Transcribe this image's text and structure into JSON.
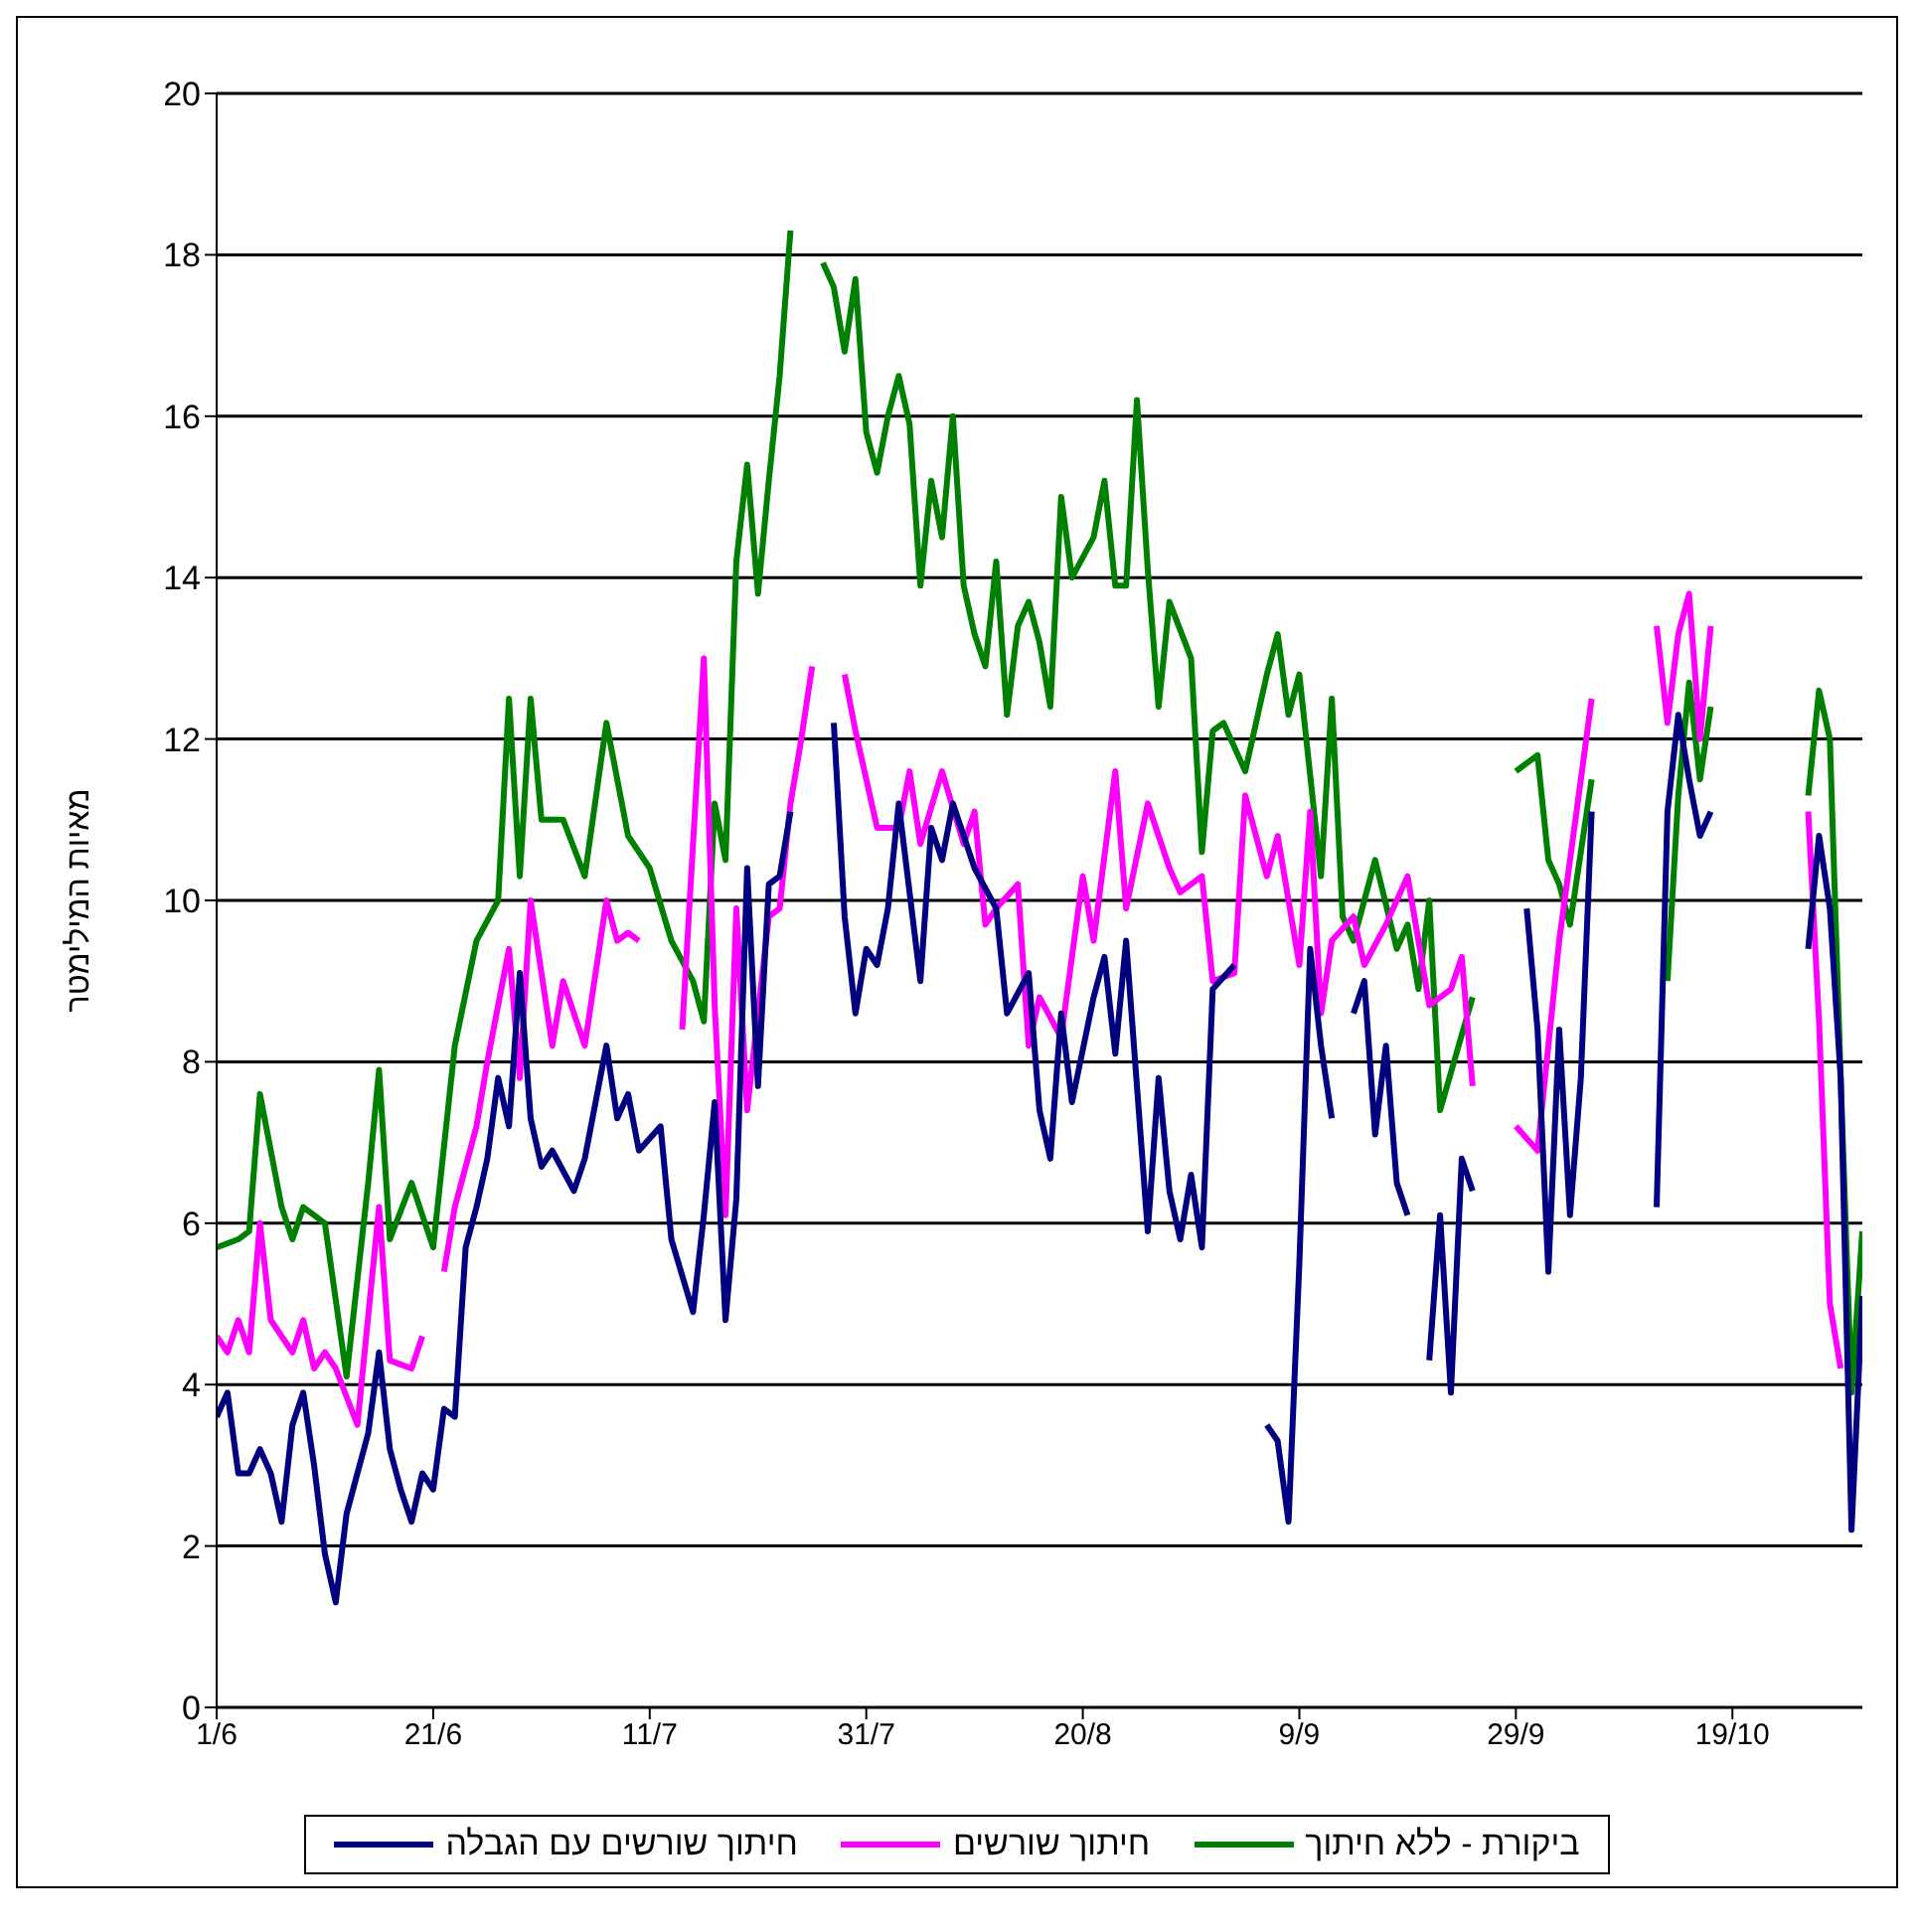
{
  "chart_data": {
    "type": "line",
    "ylabel": "מאיות המילימטר",
    "xlim": [
      "--06-01",
      "--10-31"
    ],
    "xticks": [
      {
        "value": "--06-01",
        "label": "1/6"
      },
      {
        "value": "--06-21",
        "label": "21/6"
      },
      {
        "value": "--07-11",
        "label": "11/7"
      },
      {
        "value": "--07-31",
        "label": "31/7"
      },
      {
        "value": "--08-20",
        "label": "20/8"
      },
      {
        "value": "--09-09",
        "label": "9/9"
      },
      {
        "value": "--09-29",
        "label": "29/9"
      },
      {
        "value": "--10-19",
        "label": "19/10"
      }
    ],
    "ylim": [
      0,
      20
    ],
    "yticks": [
      0,
      2,
      4,
      6,
      8,
      10,
      12,
      14,
      16,
      18,
      20
    ],
    "grid": "y",
    "legend": "bottom",
    "line_style": "solid",
    "series": [
      {
        "name": "ביקורת - ללא חיתוך",
        "color": "#008000",
        "x": [
          "--06-01",
          "--06-03",
          "--06-04",
          "--06-05",
          "--06-07",
          "--06-08",
          "--06-09",
          "--06-11",
          "--06-13",
          "--06-15",
          "--06-16",
          "--06-17",
          "--06-19",
          "--06-21",
          "--06-23",
          "--06-25",
          "--06-27",
          "--06-28",
          "--06-29",
          "--06-30",
          "--07-01",
          "--07-03",
          "--07-05",
          "--07-07",
          "--07-09",
          "--07-11",
          "--07-13",
          "--07-15",
          "--07-16",
          "--07-17",
          "--07-18",
          "--07-19",
          "--07-20",
          "--07-21",
          "--07-22",
          "--07-23",
          "--07-24",
          "--07-25",
          "--07-27",
          "--07-28",
          "--07-29",
          "--07-30",
          "--07-31",
          "--08-01",
          "--08-02",
          "--08-03",
          "--08-04",
          "--08-05",
          "--08-06",
          "--08-07",
          "--08-08",
          "--08-09",
          "--08-10",
          "--08-11",
          "--08-12",
          "--08-13",
          "--08-14",
          "--08-15",
          "--08-16",
          "--08-17",
          "--08-18",
          "--08-19",
          "--08-21",
          "--08-22",
          "--08-23",
          "--08-24",
          "--08-25",
          "--08-26",
          "--08-27",
          "--08-28",
          "--08-30",
          "--08-31",
          "--09-01",
          "--09-02",
          "--09-04",
          "--09-06",
          "--09-07",
          "--09-08",
          "--09-09",
          "--09-11",
          "--09-12",
          "--09-13",
          "--09-14",
          "--09-16",
          "--09-18",
          "--09-19",
          "--09-20",
          "--09-21",
          "--09-22",
          "--09-25",
          "--09-27",
          "--09-29",
          "--10-01",
          "--10-02",
          "--10-03",
          "--10-04",
          "--10-06",
          "--10-09",
          "--10-13",
          "--10-14",
          "--10-15",
          "--10-16",
          "--10-17",
          "--10-21",
          "--10-26",
          "--10-27",
          "--10-28",
          "--10-29",
          "--10-30",
          "--10-31"
        ],
        "values": [
          5.7,
          5.8,
          5.9,
          7.6,
          6.2,
          5.8,
          6.2,
          6.0,
          4.1,
          6.5,
          7.9,
          5.8,
          6.5,
          5.7,
          8.2,
          9.5,
          10.0,
          12.5,
          10.3,
          12.5,
          11.0,
          11.0,
          10.3,
          12.2,
          10.8,
          10.4,
          9.5,
          9.0,
          8.5,
          11.2,
          10.5,
          14.2,
          15.4,
          13.8,
          15.2,
          16.5,
          18.3,
          null,
          17.9,
          17.6,
          16.8,
          17.7,
          15.8,
          15.3,
          16.0,
          16.5,
          15.9,
          13.9,
          15.2,
          14.5,
          16.0,
          13.9,
          13.3,
          12.9,
          14.2,
          12.3,
          13.4,
          13.7,
          13.2,
          12.4,
          15.0,
          14.0,
          14.5,
          15.2,
          13.9,
          13.9,
          16.2,
          14.1,
          12.4,
          13.7,
          13.0,
          10.6,
          12.1,
          12.2,
          11.6,
          12.8,
          13.3,
          12.3,
          12.8,
          10.3,
          12.5,
          9.8,
          9.5,
          10.5,
          9.4,
          9.7,
          8.9,
          10.0,
          7.4,
          8.8,
          null,
          11.6,
          11.8,
          10.5,
          10.2,
          9.7,
          11.5,
          null,
          9.0,
          11.3,
          12.7,
          11.5,
          12.4,
          null,
          11.3,
          12.6,
          12.0,
          7.8,
          3.9,
          5.9
        ]
      },
      {
        "name": "חיתוך שורשים",
        "color": "#ff00ff",
        "x": [
          "--06-01",
          "--06-02",
          "--06-03",
          "--06-04",
          "--06-05",
          "--06-06",
          "--06-08",
          "--06-09",
          "--06-10",
          "--06-11",
          "--06-12",
          "--06-14",
          "--06-16",
          "--06-17",
          "--06-19",
          "--06-20",
          "--06-21",
          "--06-22",
          "--06-23",
          "--06-25",
          "--06-26",
          "--06-28",
          "--06-29",
          "--06-30",
          "--07-02",
          "--07-03",
          "--07-05",
          "--07-07",
          "--07-08",
          "--07-09",
          "--07-10",
          "--07-12",
          "--07-14",
          "--07-16",
          "--07-17",
          "--07-18",
          "--07-19",
          "--07-20",
          "--07-22",
          "--07-23",
          "--07-24",
          "--07-25",
          "--07-26",
          "--07-27",
          "--07-29",
          "--07-30",
          "--07-31",
          "--08-01",
          "--08-03",
          "--08-04",
          "--08-05",
          "--08-07",
          "--08-09",
          "--08-10",
          "--08-11",
          "--08-12",
          "--08-14",
          "--08-15",
          "--08-16",
          "--08-18",
          "--08-19",
          "--08-20",
          "--08-21",
          "--08-23",
          "--08-24",
          "--08-26",
          "--08-28",
          "--08-29",
          "--08-31",
          "--09-01",
          "--09-03",
          "--09-04",
          "--09-06",
          "--09-07",
          "--09-09",
          "--09-10",
          "--09-11",
          "--09-12",
          "--09-14",
          "--09-15",
          "--09-17",
          "--09-19",
          "--09-21",
          "--09-23",
          "--09-24",
          "--09-25",
          "--09-27",
          "--09-29",
          "--10-01",
          "--10-02",
          "--10-03",
          "--10-04",
          "--10-05",
          "--10-06",
          "--10-09",
          "--10-12",
          "--10-13",
          "--10-14",
          "--10-15",
          "--10-16",
          "--10-17",
          "--10-21",
          "--10-26",
          "--10-27",
          "--10-28",
          "--10-29"
        ],
        "values": [
          4.6,
          4.4,
          4.8,
          4.4,
          6.0,
          4.8,
          4.4,
          4.8,
          4.2,
          4.4,
          4.2,
          3.5,
          6.2,
          4.3,
          4.2,
          4.6,
          null,
          5.4,
          6.2,
          7.2,
          8.0,
          9.4,
          7.8,
          10.0,
          8.2,
          9.0,
          8.2,
          10.0,
          9.5,
          9.6,
          9.5,
          null,
          8.4,
          13.0,
          8.7,
          6.1,
          9.9,
          7.4,
          9.8,
          9.9,
          11.2,
          12.0,
          12.9,
          null,
          12.8,
          12.1,
          11.5,
          10.9,
          10.9,
          11.6,
          10.7,
          11.6,
          10.7,
          11.1,
          9.7,
          9.9,
          10.2,
          8.2,
          8.8,
          8.3,
          9.3,
          10.3,
          9.5,
          11.6,
          9.9,
          11.2,
          10.4,
          10.1,
          10.3,
          9.0,
          9.1,
          11.3,
          10.3,
          10.8,
          9.2,
          11.1,
          8.6,
          9.5,
          9.8,
          9.2,
          9.7,
          10.3,
          8.7,
          8.9,
          9.3,
          7.7,
          null,
          7.2,
          6.9,
          8.2,
          9.5,
          10.5,
          11.5,
          12.5,
          null,
          13.4,
          12.2,
          13.3,
          13.8,
          12.0,
          13.4,
          null,
          11.1,
          8.5,
          5.0,
          4.2
        ]
      },
      {
        "name": "חיתוך שורשים עם הגבלה",
        "color": "#000080",
        "x": [
          "--06-01",
          "--06-02",
          "--06-03",
          "--06-04",
          "--06-05",
          "--06-06",
          "--06-07",
          "--06-08",
          "--06-09",
          "--06-10",
          "--06-11",
          "--06-12",
          "--06-13",
          "--06-15",
          "--06-16",
          "--06-17",
          "--06-18",
          "--06-19",
          "--06-20",
          "--06-21",
          "--06-22",
          "--06-23",
          "--06-24",
          "--06-25",
          "--06-26",
          "--06-27",
          "--06-28",
          "--06-29",
          "--06-30",
          "--07-01",
          "--07-02",
          "--07-04",
          "--07-05",
          "--07-07",
          "--07-08",
          "--07-09",
          "--07-10",
          "--07-12",
          "--07-13",
          "--07-15",
          "--07-16",
          "--07-17",
          "--07-18",
          "--07-19",
          "--07-20",
          "--07-21",
          "--07-22",
          "--07-23",
          "--07-24",
          "--07-26",
          "--07-28",
          "--07-29",
          "--07-30",
          "--07-31",
          "--08-01",
          "--08-02",
          "--08-03",
          "--08-05",
          "--08-06",
          "--08-07",
          "--08-08",
          "--08-10",
          "--08-12",
          "--08-13",
          "--08-15",
          "--08-16",
          "--08-17",
          "--08-18",
          "--08-19",
          "--08-21",
          "--08-22",
          "--08-23",
          "--08-24",
          "--08-25",
          "--08-26",
          "--08-27",
          "--08-28",
          "--08-29",
          "--08-30",
          "--08-31",
          "--09-01",
          "--09-03",
          "--09-04",
          "--09-06",
          "--09-07",
          "--09-08",
          "--09-09",
          "--09-10",
          "--09-11",
          "--09-12",
          "--09-13",
          "--09-14",
          "--09-15",
          "--09-16",
          "--09-17",
          "--09-18",
          "--09-19",
          "--09-20",
          "--09-21",
          "--09-22",
          "--09-23",
          "--09-24",
          "--09-25",
          "--09-27",
          "--09-30",
          "--10-01",
          "--10-02",
          "--10-03",
          "--10-04",
          "--10-05",
          "--10-06",
          "--10-09",
          "--10-12",
          "--10-13",
          "--10-14",
          "--10-15",
          "--10-16",
          "--10-17",
          "--10-21",
          "--10-26",
          "--10-27",
          "--10-28",
          "--10-29",
          "--10-30",
          "--10-31"
        ],
        "values": [
          3.6,
          3.9,
          2.9,
          2.9,
          3.2,
          2.9,
          2.3,
          3.5,
          3.9,
          3.0,
          1.9,
          1.3,
          2.4,
          3.4,
          4.4,
          3.2,
          2.7,
          2.3,
          2.9,
          2.7,
          3.7,
          3.6,
          5.7,
          6.2,
          6.8,
          7.8,
          7.2,
          9.1,
          7.3,
          6.7,
          6.9,
          6.4,
          6.8,
          8.2,
          7.3,
          7.6,
          6.9,
          7.2,
          5.8,
          4.9,
          6.1,
          7.5,
          4.8,
          6.3,
          10.4,
          7.7,
          10.2,
          10.3,
          11.1,
          null,
          12.2,
          9.8,
          8.6,
          9.4,
          9.2,
          9.9,
          11.2,
          9.0,
          10.9,
          10.5,
          11.2,
          10.4,
          9.9,
          8.6,
          9.1,
          7.4,
          6.8,
          8.6,
          7.5,
          8.8,
          9.3,
          8.1,
          9.5,
          7.7,
          5.9,
          7.8,
          6.4,
          5.8,
          6.6,
          5.7,
          8.9,
          9.2,
          null,
          3.5,
          3.3,
          2.3,
          5.5,
          9.4,
          8.2,
          7.3,
          null,
          8.6,
          9.0,
          7.1,
          8.2,
          6.5,
          6.1,
          null,
          4.3,
          6.1,
          3.9,
          6.8,
          6.4,
          null,
          9.9,
          8.4,
          5.4,
          8.4,
          6.1,
          7.8,
          11.1,
          null,
          6.2,
          11.1,
          12.3,
          11.5,
          10.8,
          11.1,
          null,
          9.4,
          10.8,
          9.9,
          7.8,
          2.2,
          5.1
        ]
      }
    ]
  }
}
